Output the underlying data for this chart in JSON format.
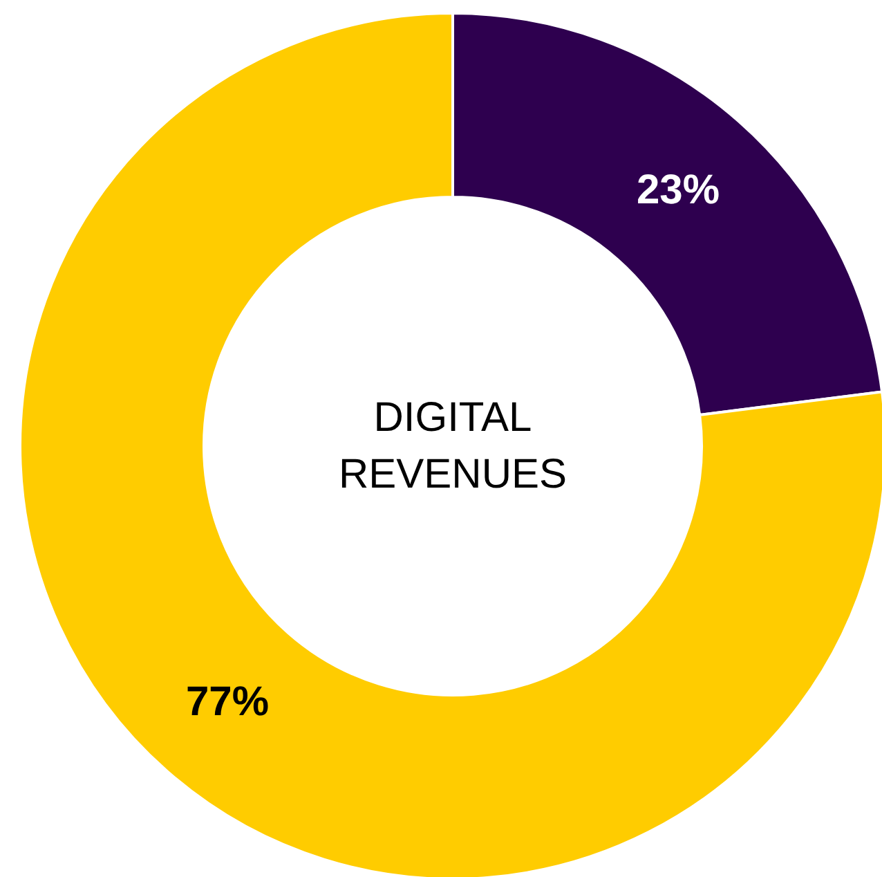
{
  "chart_data": {
    "type": "donut",
    "title": "DIGITAL REVENUES",
    "categories": [
      null,
      null
    ],
    "values": [
      23,
      77
    ],
    "colors": [
      "#2e004f",
      "#ffcc00"
    ],
    "value_labels": [
      "23%",
      "77%"
    ]
  }
}
